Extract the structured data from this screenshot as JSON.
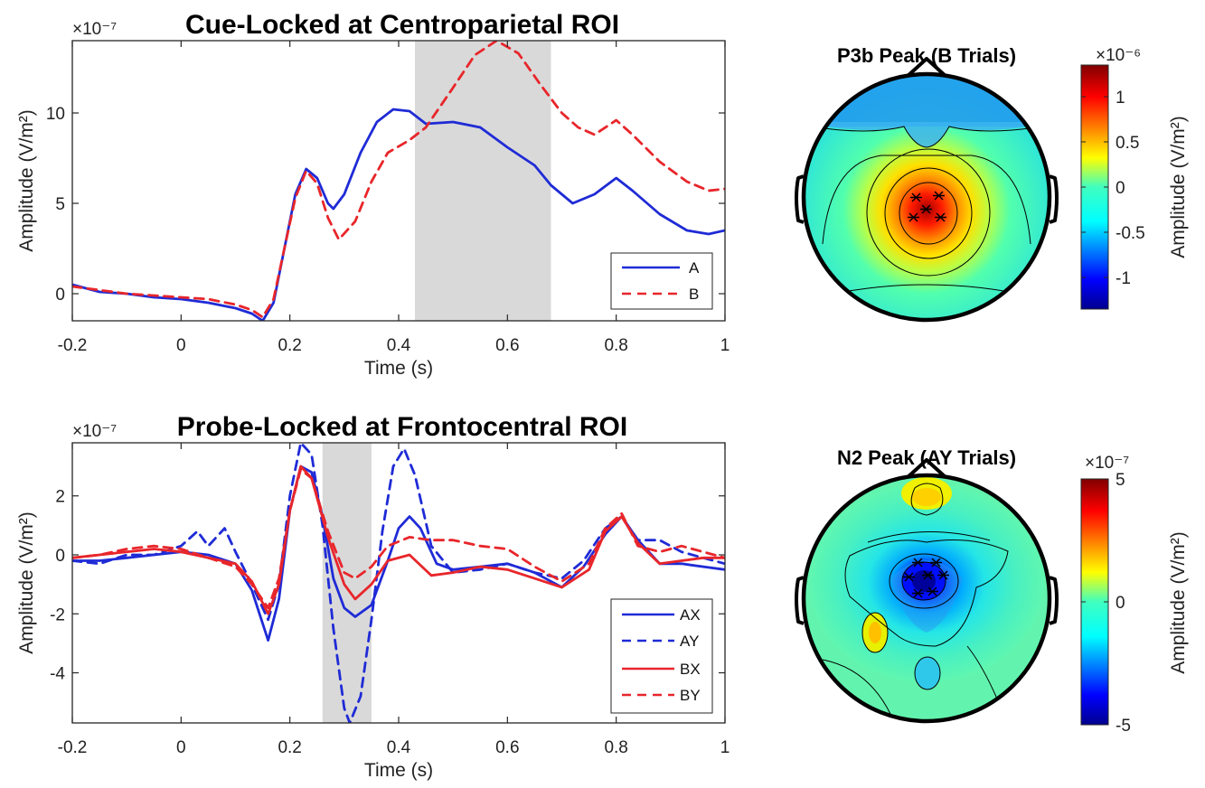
{
  "chart_data": [
    {
      "type": "line",
      "title": "Cue-Locked at Centroparietal ROI",
      "xlabel": "Time (s)",
      "ylabel": "Amplitude (V/m²)",
      "y_exponent": "×10⁻⁷",
      "xlim": [
        -0.2,
        1.0
      ],
      "ylim": [
        -1.5,
        14
      ],
      "xticks": [
        "-0.2",
        "0",
        "0.2",
        "0.4",
        "0.6",
        "0.8",
        "1"
      ],
      "xtick_values": [
        -0.2,
        0,
        0.2,
        0.4,
        0.6,
        0.8,
        1.0
      ],
      "yticks": [
        "0",
        "5",
        "10"
      ],
      "ytick_values": [
        0,
        5,
        10
      ],
      "shaded_window": [
        0.43,
        0.68
      ],
      "legend_placement": "bottom-right",
      "series": [
        {
          "name": "A",
          "color": "#1f2bd6",
          "dash": "solid",
          "points": [
            [
              -0.2,
              0.5
            ],
            [
              -0.15,
              0.1
            ],
            [
              -0.1,
              0.0
            ],
            [
              -0.05,
              -0.2
            ],
            [
              0.0,
              -0.3
            ],
            [
              0.05,
              -0.5
            ],
            [
              0.1,
              -0.8
            ],
            [
              0.13,
              -1.1
            ],
            [
              0.15,
              -1.5
            ],
            [
              0.17,
              -0.5
            ],
            [
              0.19,
              2.5
            ],
            [
              0.21,
              5.5
            ],
            [
              0.23,
              6.9
            ],
            [
              0.25,
              6.4
            ],
            [
              0.27,
              5.0
            ],
            [
              0.28,
              4.7
            ],
            [
              0.3,
              5.5
            ],
            [
              0.33,
              7.8
            ],
            [
              0.36,
              9.5
            ],
            [
              0.39,
              10.2
            ],
            [
              0.42,
              10.1
            ],
            [
              0.45,
              9.4
            ],
            [
              0.5,
              9.5
            ],
            [
              0.55,
              9.2
            ],
            [
              0.6,
              8.1
            ],
            [
              0.65,
              7.1
            ],
            [
              0.68,
              6.0
            ],
            [
              0.72,
              5.0
            ],
            [
              0.76,
              5.5
            ],
            [
              0.8,
              6.4
            ],
            [
              0.83,
              5.7
            ],
            [
              0.88,
              4.4
            ],
            [
              0.93,
              3.5
            ],
            [
              0.97,
              3.3
            ],
            [
              1.0,
              3.5
            ]
          ]
        },
        {
          "name": "B",
          "color": "#e8262b",
          "dash": "dashed",
          "points": [
            [
              -0.2,
              0.4
            ],
            [
              -0.15,
              0.2
            ],
            [
              -0.1,
              0.0
            ],
            [
              -0.05,
              -0.1
            ],
            [
              0.0,
              -0.2
            ],
            [
              0.05,
              -0.3
            ],
            [
              0.1,
              -0.6
            ],
            [
              0.13,
              -0.9
            ],
            [
              0.15,
              -1.3
            ],
            [
              0.17,
              -0.3
            ],
            [
              0.19,
              2.5
            ],
            [
              0.21,
              5.3
            ],
            [
              0.23,
              6.8
            ],
            [
              0.25,
              6.1
            ],
            [
              0.27,
              4.2
            ],
            [
              0.29,
              3.0
            ],
            [
              0.32,
              4.0
            ],
            [
              0.35,
              6.2
            ],
            [
              0.38,
              7.8
            ],
            [
              0.42,
              8.5
            ],
            [
              0.45,
              9.2
            ],
            [
              0.5,
              11.4
            ],
            [
              0.54,
              13.2
            ],
            [
              0.58,
              14.0
            ],
            [
              0.62,
              13.3
            ],
            [
              0.66,
              11.6
            ],
            [
              0.7,
              10.0
            ],
            [
              0.73,
              9.2
            ],
            [
              0.76,
              8.8
            ],
            [
              0.8,
              9.6
            ],
            [
              0.83,
              8.8
            ],
            [
              0.88,
              7.3
            ],
            [
              0.93,
              6.2
            ],
            [
              0.97,
              5.7
            ],
            [
              1.0,
              5.8
            ]
          ]
        }
      ]
    },
    {
      "type": "line",
      "title": "Probe-Locked at Frontocentral ROI",
      "xlabel": "Time (s)",
      "ylabel": "Amplitude (V/m²)",
      "y_exponent": "×10⁻⁷",
      "xlim": [
        -0.2,
        1.0
      ],
      "ylim": [
        -5.7,
        3.8
      ],
      "xticks": [
        "-0.2",
        "0",
        "0.2",
        "0.4",
        "0.6",
        "0.8",
        "1"
      ],
      "xtick_values": [
        -0.2,
        0,
        0.2,
        0.4,
        0.6,
        0.8,
        1.0
      ],
      "yticks": [
        "-4",
        "-2",
        "0",
        "2"
      ],
      "ytick_values": [
        -4,
        -2,
        0,
        2
      ],
      "shaded_window": [
        0.26,
        0.35
      ],
      "legend_placement": "bottom-right",
      "series": [
        {
          "name": "AX",
          "color": "#1f2bd6",
          "dash": "solid",
          "points": [
            [
              -0.2,
              -0.2
            ],
            [
              -0.15,
              -0.2
            ],
            [
              -0.1,
              -0.1
            ],
            [
              -0.05,
              0.0
            ],
            [
              0.0,
              0.1
            ],
            [
              0.05,
              0.0
            ],
            [
              0.1,
              -0.3
            ],
            [
              0.13,
              -1.2
            ],
            [
              0.16,
              -2.9
            ],
            [
              0.18,
              -1.5
            ],
            [
              0.2,
              1.5
            ],
            [
              0.22,
              3.0
            ],
            [
              0.24,
              2.8
            ],
            [
              0.26,
              1.3
            ],
            [
              0.28,
              -0.8
            ],
            [
              0.3,
              -1.8
            ],
            [
              0.32,
              -2.1
            ],
            [
              0.35,
              -1.7
            ],
            [
              0.38,
              -0.2
            ],
            [
              0.4,
              0.9
            ],
            [
              0.42,
              1.3
            ],
            [
              0.44,
              0.9
            ],
            [
              0.47,
              -0.3
            ],
            [
              0.5,
              -0.5
            ],
            [
              0.55,
              -0.4
            ],
            [
              0.6,
              -0.3
            ],
            [
              0.65,
              -0.6
            ],
            [
              0.7,
              -1.1
            ],
            [
              0.74,
              -0.4
            ],
            [
              0.78,
              0.7
            ],
            [
              0.81,
              1.3
            ],
            [
              0.84,
              0.5
            ],
            [
              0.88,
              -0.3
            ],
            [
              0.92,
              -0.3
            ],
            [
              0.96,
              -0.4
            ],
            [
              1.0,
              -0.5
            ]
          ]
        },
        {
          "name": "AY",
          "color": "#1f2bd6",
          "dash": "dashed",
          "points": [
            [
              -0.2,
              -0.2
            ],
            [
              -0.15,
              -0.3
            ],
            [
              -0.1,
              0.0
            ],
            [
              -0.05,
              0.0
            ],
            [
              0.0,
              0.3
            ],
            [
              0.03,
              0.8
            ],
            [
              0.05,
              0.3
            ],
            [
              0.08,
              0.9
            ],
            [
              0.1,
              0.1
            ],
            [
              0.13,
              -1.0
            ],
            [
              0.16,
              -2.2
            ],
            [
              0.18,
              -1.0
            ],
            [
              0.2,
              2.0
            ],
            [
              0.22,
              3.8
            ],
            [
              0.24,
              3.4
            ],
            [
              0.26,
              1.0
            ],
            [
              0.28,
              -2.5
            ],
            [
              0.3,
              -5.2
            ],
            [
              0.31,
              -5.7
            ],
            [
              0.33,
              -4.8
            ],
            [
              0.35,
              -2.2
            ],
            [
              0.37,
              0.8
            ],
            [
              0.39,
              3.0
            ],
            [
              0.41,
              3.6
            ],
            [
              0.43,
              2.7
            ],
            [
              0.46,
              0.3
            ],
            [
              0.5,
              -0.6
            ],
            [
              0.55,
              -0.5
            ],
            [
              0.6,
              -0.3
            ],
            [
              0.65,
              -0.6
            ],
            [
              0.7,
              -0.8
            ],
            [
              0.74,
              -0.2
            ],
            [
              0.78,
              0.9
            ],
            [
              0.81,
              1.3
            ],
            [
              0.84,
              0.5
            ],
            [
              0.88,
              0.5
            ],
            [
              0.92,
              0.1
            ],
            [
              0.96,
              -0.1
            ],
            [
              1.0,
              -0.3
            ]
          ]
        },
        {
          "name": "BX",
          "color": "#e8262b",
          "dash": "solid",
          "points": [
            [
              -0.2,
              -0.1
            ],
            [
              -0.15,
              0.0
            ],
            [
              -0.1,
              0.1
            ],
            [
              -0.05,
              0.2
            ],
            [
              0.0,
              0.1
            ],
            [
              0.05,
              -0.1
            ],
            [
              0.1,
              -0.3
            ],
            [
              0.13,
              -0.9
            ],
            [
              0.16,
              -2.0
            ],
            [
              0.18,
              -1.0
            ],
            [
              0.2,
              1.5
            ],
            [
              0.22,
              3.0
            ],
            [
              0.24,
              2.6
            ],
            [
              0.27,
              0.6
            ],
            [
              0.3,
              -1.0
            ],
            [
              0.32,
              -1.5
            ],
            [
              0.35,
              -1.0
            ],
            [
              0.38,
              -0.2
            ],
            [
              0.42,
              0.0
            ],
            [
              0.46,
              -0.7
            ],
            [
              0.5,
              -0.6
            ],
            [
              0.55,
              -0.4
            ],
            [
              0.6,
              -0.5
            ],
            [
              0.65,
              -0.8
            ],
            [
              0.7,
              -1.1
            ],
            [
              0.75,
              -0.5
            ],
            [
              0.78,
              0.8
            ],
            [
              0.81,
              1.3
            ],
            [
              0.84,
              0.4
            ],
            [
              0.88,
              -0.3
            ],
            [
              0.92,
              -0.2
            ],
            [
              0.96,
              -0.1
            ],
            [
              1.0,
              -0.1
            ]
          ]
        },
        {
          "name": "BY",
          "color": "#e8262b",
          "dash": "dashed",
          "points": [
            [
              -0.2,
              -0.1
            ],
            [
              -0.15,
              0.0
            ],
            [
              -0.1,
              0.2
            ],
            [
              -0.05,
              0.3
            ],
            [
              0.0,
              0.2
            ],
            [
              0.05,
              -0.1
            ],
            [
              0.1,
              -0.4
            ],
            [
              0.13,
              -1.0
            ],
            [
              0.16,
              -1.8
            ],
            [
              0.18,
              -0.8
            ],
            [
              0.2,
              1.5
            ],
            [
              0.22,
              2.9
            ],
            [
              0.24,
              2.6
            ],
            [
              0.27,
              0.8
            ],
            [
              0.3,
              -0.6
            ],
            [
              0.32,
              -0.8
            ],
            [
              0.35,
              -0.4
            ],
            [
              0.38,
              0.3
            ],
            [
              0.42,
              0.6
            ],
            [
              0.46,
              0.5
            ],
            [
              0.5,
              0.5
            ],
            [
              0.55,
              0.3
            ],
            [
              0.6,
              0.2
            ],
            [
              0.65,
              -0.4
            ],
            [
              0.7,
              -0.9
            ],
            [
              0.75,
              -0.3
            ],
            [
              0.78,
              0.9
            ],
            [
              0.81,
              1.4
            ],
            [
              0.84,
              0.3
            ],
            [
              0.88,
              0.1
            ],
            [
              0.92,
              0.3
            ],
            [
              0.96,
              0.1
            ],
            [
              1.0,
              -0.1
            ]
          ]
        }
      ]
    },
    {
      "type": "heatmap",
      "title": "P3b Peak (B Trials)",
      "colorbar_label": "Amplitude (V/m²)",
      "colorbar_exponent": "×10⁻⁶",
      "colorbar_range": [
        -1.35,
        1.35
      ],
      "colorbar_ticks": [
        "1",
        "0.5",
        "0",
        "-0.5",
        "-1"
      ],
      "colorbar_tick_values": [
        1,
        0.5,
        0,
        -0.5,
        -1
      ],
      "colormap": "jet"
    },
    {
      "type": "heatmap",
      "title": "N2 Peak (AY Trials)",
      "colorbar_label": "Amplitude (V/m²)",
      "colorbar_exponent": "×10⁻⁷",
      "colorbar_range": [
        -5,
        5
      ],
      "colorbar_ticks": [
        "5",
        "0",
        "-5"
      ],
      "colorbar_tick_values": [
        5,
        0,
        -5
      ],
      "colormap": "jet"
    }
  ]
}
